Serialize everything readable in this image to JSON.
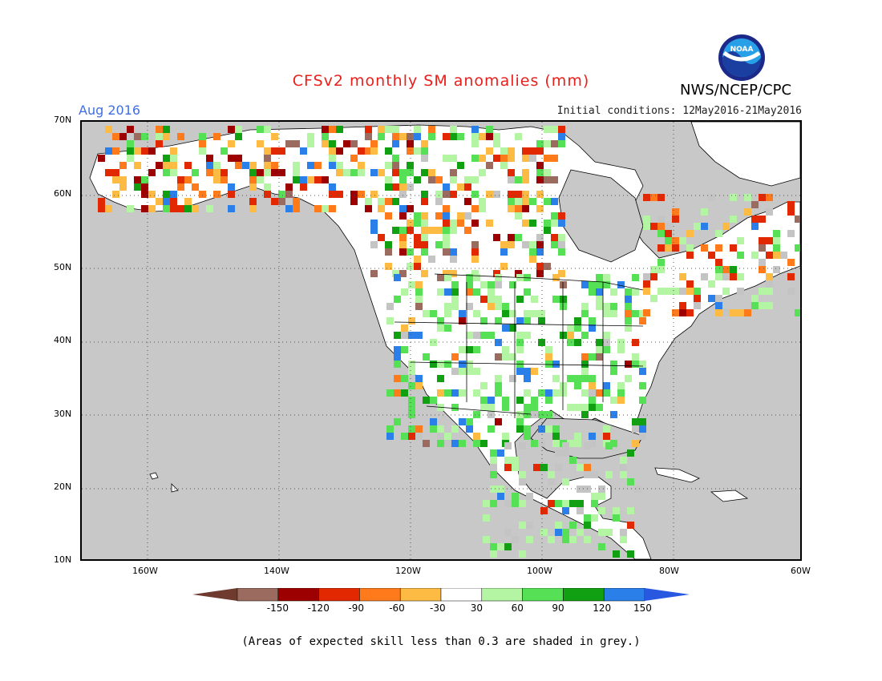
{
  "title": "CFSv2 monthly SM anomalies (mm)",
  "valid_month": "Aug 2016",
  "initial_conditions": "Initial conditions: 12May2016-21May2016",
  "agency": "NWS/NCEP/CPC",
  "logo_text": "NOAA",
  "footnote": "(Areas of expected skill less than 0.3 are shaded in grey.)",
  "lat_labels": [
    "70N",
    "60N",
    "50N",
    "40N",
    "30N",
    "20N",
    "10N"
  ],
  "lon_labels": [
    "160W",
    "140W",
    "120W",
    "100W",
    "80W",
    "60W"
  ],
  "legend": {
    "bins": [
      {
        "label": "-150",
        "color": "#9a6b5e"
      },
      {
        "label": "-120",
        "color": "#9c0000"
      },
      {
        "label": "-90",
        "color": "#e22800"
      },
      {
        "label": "-60",
        "color": "#ff7a1a"
      },
      {
        "label": "-30",
        "color": "#fdbb44"
      },
      {
        "label": "30",
        "color": "#ffffff"
      },
      {
        "label": "60",
        "color": "#b4f5a4"
      },
      {
        "label": "90",
        "color": "#55e055"
      },
      {
        "label": "120",
        "color": "#11a011"
      },
      {
        "label": "150",
        "color": "#2b7fe8"
      }
    ],
    "low_arrow_color": "#6e3b2e",
    "high_arrow_color": "#2858e0"
  },
  "colors": {
    "ocean": "#c8c8c8",
    "land": "#ffffff",
    "skill_grey": "#c4c4c4"
  }
}
